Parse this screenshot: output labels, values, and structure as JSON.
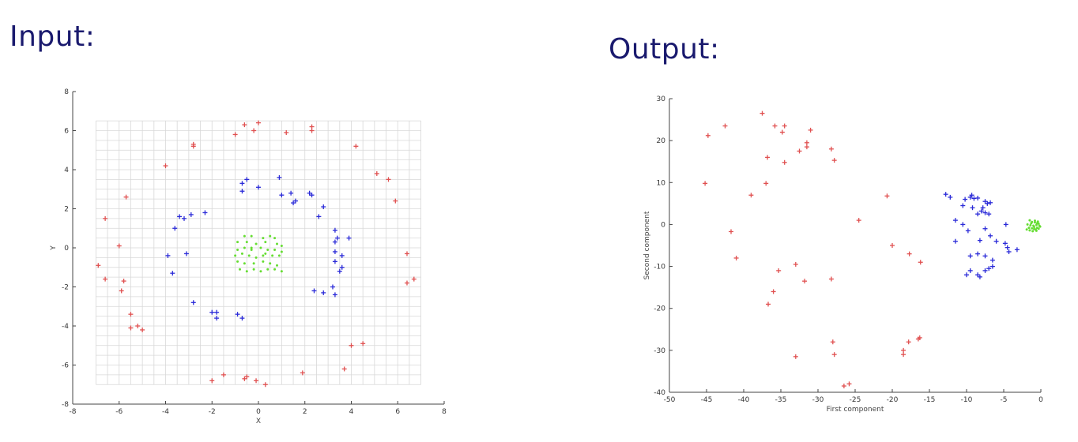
{
  "headings": {
    "input": "Input:",
    "output": "Output:"
  },
  "colors": {
    "outer": "#e05050",
    "middle": "#2a2ad8",
    "inner": "#66dd33",
    "grid": "#d8d8d8",
    "axis": "#444444",
    "heading": "#1a1a6e"
  },
  "chart_data": [
    {
      "type": "scatter",
      "title": "",
      "xlabel": "X",
      "ylabel": "Y",
      "xlim": [
        -8,
        8
      ],
      "ylim": [
        -8,
        8
      ],
      "xticks": [
        -8,
        -6,
        -4,
        -2,
        0,
        2,
        4,
        6,
        8
      ],
      "yticks": [
        -8,
        -6,
        -4,
        -2,
        0,
        2,
        4,
        6,
        8
      ],
      "grid": true,
      "grid_range": {
        "x": [
          -7,
          7
        ],
        "y": [
          -7,
          6.5
        ],
        "step": 0.5
      },
      "series": [
        {
          "marker": "plus",
          "color_key": "outer",
          "points": [
            [
              -0.6,
              6.3
            ],
            [
              0,
              6.4
            ],
            [
              -0.2,
              6.0
            ],
            [
              1.2,
              5.9
            ],
            [
              2.3,
              6.2
            ],
            [
              2.3,
              6.0
            ],
            [
              -2.8,
              5.3
            ],
            [
              -2.8,
              5.2
            ],
            [
              -4,
              4.2
            ],
            [
              4.2,
              5.2
            ],
            [
              5.1,
              3.8
            ],
            [
              5.6,
              3.5
            ],
            [
              5.9,
              2.4
            ],
            [
              -5.7,
              2.6
            ],
            [
              -6.6,
              1.5
            ],
            [
              -6.9,
              -0.9
            ],
            [
              -6.0,
              0.1
            ],
            [
              -6.6,
              -1.6
            ],
            [
              -5.8,
              -1.7
            ],
            [
              -5.9,
              -2.2
            ],
            [
              -5.5,
              -3.4
            ],
            [
              -5.5,
              -4.1
            ],
            [
              -5.2,
              -4.0
            ],
            [
              -5.0,
              -4.2
            ],
            [
              6.4,
              -0.3
            ],
            [
              6.4,
              -1.8
            ],
            [
              6.7,
              -1.6
            ],
            [
              4.5,
              -4.9
            ],
            [
              4.0,
              -5.0
            ],
            [
              3.7,
              -6.2
            ],
            [
              1.9,
              -6.4
            ],
            [
              -0.5,
              -6.6
            ],
            [
              -0.6,
              -6.7
            ],
            [
              -0.1,
              -6.8
            ],
            [
              -1.5,
              -6.5
            ],
            [
              -2.0,
              -6.8
            ],
            [
              0.3,
              -7.0
            ],
            [
              -1,
              5.8
            ]
          ]
        },
        {
          "marker": "plus",
          "color_key": "middle",
          "points": [
            [
              -0.7,
              3.3
            ],
            [
              -0.5,
              3.5
            ],
            [
              -0.7,
              2.9
            ],
            [
              0,
              3.1
            ],
            [
              0.9,
              3.6
            ],
            [
              1.0,
              2.7
            ],
            [
              1.4,
              2.8
            ],
            [
              1.6,
              2.4
            ],
            [
              1.5,
              2.3
            ],
            [
              2.2,
              2.8
            ],
            [
              2.3,
              2.7
            ],
            [
              2.8,
              2.1
            ],
            [
              2.6,
              1.6
            ],
            [
              -2.3,
              1.8
            ],
            [
              -2.9,
              1.7
            ],
            [
              -3.4,
              1.6
            ],
            [
              -3.2,
              1.5
            ],
            [
              -3.6,
              1.0
            ],
            [
              -3.9,
              -0.4
            ],
            [
              -3.1,
              -0.3
            ],
            [
              -3.7,
              -1.3
            ],
            [
              3.3,
              0.9
            ],
            [
              3.4,
              0.5
            ],
            [
              3.3,
              0.3
            ],
            [
              3.3,
              -0.2
            ],
            [
              3.6,
              -0.4
            ],
            [
              3.9,
              0.5
            ],
            [
              3.3,
              -0.7
            ],
            [
              3.6,
              -1.0
            ],
            [
              3.5,
              -1.2
            ],
            [
              3.2,
              -2.0
            ],
            [
              3.3,
              -2.4
            ],
            [
              2.8,
              -2.3
            ],
            [
              2.4,
              -2.2
            ],
            [
              -2.8,
              -2.8
            ],
            [
              -2.0,
              -3.3
            ],
            [
              -1.8,
              -3.3
            ],
            [
              -1.8,
              -3.6
            ],
            [
              -0.9,
              -3.4
            ],
            [
              -0.7,
              -3.6
            ]
          ]
        },
        {
          "marker": "dot",
          "color_key": "inner",
          "points": [
            [
              -0.6,
              0.6
            ],
            [
              -0.3,
              0.6
            ],
            [
              0.2,
              0.5
            ],
            [
              0.5,
              0.6
            ],
            [
              0.7,
              0.5
            ],
            [
              -0.9,
              0.3
            ],
            [
              -0.5,
              0.3
            ],
            [
              -0.1,
              0.2
            ],
            [
              0.3,
              0.3
            ],
            [
              0.8,
              0.2
            ],
            [
              1.0,
              0.1
            ],
            [
              -0.9,
              -0.1
            ],
            [
              -0.6,
              0
            ],
            [
              -0.3,
              -0.1
            ],
            [
              0.1,
              0.0
            ],
            [
              0.4,
              -0.1
            ],
            [
              0.7,
              -0.1
            ],
            [
              1.0,
              -0.2
            ],
            [
              -1.0,
              -0.4
            ],
            [
              -0.7,
              -0.3
            ],
            [
              -0.4,
              -0.4
            ],
            [
              -0.1,
              -0.5
            ],
            [
              0.3,
              -0.3
            ],
            [
              0.6,
              -0.4
            ],
            [
              0.9,
              -0.4
            ],
            [
              -0.9,
              -0.7
            ],
            [
              -0.6,
              -0.8
            ],
            [
              -0.2,
              -0.8
            ],
            [
              0.2,
              -0.7
            ],
            [
              0.5,
              -0.8
            ],
            [
              0.8,
              -0.9
            ],
            [
              -0.8,
              -1.1
            ],
            [
              -0.5,
              -1.2
            ],
            [
              -0.2,
              -1.1
            ],
            [
              0.1,
              -1.2
            ],
            [
              0.4,
              -1.1
            ],
            [
              0.7,
              -1.1
            ],
            [
              1.0,
              -1.2
            ],
            [
              -0.3,
              0.0
            ],
            [
              0.2,
              -0.4
            ]
          ]
        }
      ]
    },
    {
      "type": "scatter",
      "title": "",
      "xlabel": "First component",
      "ylabel": "Second component",
      "xlim": [
        -50,
        0
      ],
      "ylim": [
        -40,
        30
      ],
      "xticks": [
        -50,
        -45,
        -40,
        -35,
        -30,
        -25,
        -20,
        -15,
        -10,
        -5,
        0
      ],
      "yticks": [
        -40,
        -30,
        -20,
        -10,
        0,
        10,
        20,
        30
      ],
      "grid": false,
      "series": [
        {
          "marker": "plus",
          "color_key": "outer",
          "points": [
            [
              -37.5,
              26.5
            ],
            [
              -44.8,
              21.2
            ],
            [
              -42.5,
              23.5
            ],
            [
              -35.8,
              23.5
            ],
            [
              -34.5,
              23.5
            ],
            [
              -34.8,
              22.0
            ],
            [
              -31.0,
              22.5
            ],
            [
              -31.5,
              19.5
            ],
            [
              -31.5,
              18.5
            ],
            [
              -32.5,
              17.5
            ],
            [
              -28.2,
              18.0
            ],
            [
              -27.8,
              15.3
            ],
            [
              -36.8,
              16.0
            ],
            [
              -34.5,
              14.8
            ],
            [
              -45.2,
              9.8
            ],
            [
              -37.0,
              9.8
            ],
            [
              -39.0,
              7.0
            ],
            [
              -20.7,
              6.8
            ],
            [
              -24.5,
              1.0
            ],
            [
              -41.7,
              -1.7
            ],
            [
              -41.0,
              -8.0
            ],
            [
              -20.0,
              -5.0
            ],
            [
              -17.7,
              -7.0
            ],
            [
              -16.2,
              -9.0
            ],
            [
              -33.0,
              -9.5
            ],
            [
              -35.3,
              -11.0
            ],
            [
              -31.8,
              -13.5
            ],
            [
              -28.2,
              -13.0
            ],
            [
              -36.0,
              -16.0
            ],
            [
              -36.7,
              -19.0
            ],
            [
              -28.0,
              -28.0
            ],
            [
              -27.8,
              -31.0
            ],
            [
              -18.5,
              -30.0
            ],
            [
              -18.5,
              -31.0
            ],
            [
              -17.8,
              -28.0
            ],
            [
              -16.5,
              -27.3
            ],
            [
              -16.3,
              -27.0
            ],
            [
              -33.0,
              -31.5
            ],
            [
              -26.5,
              -38.5
            ],
            [
              -25.8,
              -38.0
            ]
          ]
        },
        {
          "marker": "plus",
          "color_key": "middle",
          "points": [
            [
              -12.8,
              7.2
            ],
            [
              -12.2,
              6.5
            ],
            [
              -10.2,
              6.0
            ],
            [
              -9.5,
              6.5
            ],
            [
              -9.3,
              7.0
            ],
            [
              -9.0,
              6.2
            ],
            [
              -8.5,
              6.3
            ],
            [
              -7.5,
              5.5
            ],
            [
              -7.2,
              5.0
            ],
            [
              -6.8,
              5.2
            ],
            [
              -10.5,
              4.5
            ],
            [
              -9.2,
              4.0
            ],
            [
              -7.8,
              4.0
            ],
            [
              -8.0,
              3.2
            ],
            [
              -7.5,
              2.8
            ],
            [
              -8.5,
              2.5
            ],
            [
              -7.0,
              2.5
            ],
            [
              -11.5,
              1.0
            ],
            [
              -10.5,
              0.0
            ],
            [
              -9.8,
              -1.5
            ],
            [
              -4.7,
              0
            ],
            [
              -7.5,
              -1.0
            ],
            [
              -6.8,
              -2.7
            ],
            [
              -8.2,
              -3.8
            ],
            [
              -6.0,
              -4.0
            ],
            [
              -11.5,
              -4.0
            ],
            [
              -4.8,
              -4.5
            ],
            [
              -4.5,
              -5.5
            ],
            [
              -4.3,
              -6.5
            ],
            [
              -3.2,
              -6.0
            ],
            [
              -8.5,
              -7.0
            ],
            [
              -9.5,
              -7.5
            ],
            [
              -7.5,
              -7.5
            ],
            [
              -6.5,
              -8.5
            ],
            [
              -7.0,
              -10.5
            ],
            [
              -7.5,
              -11.0
            ],
            [
              -6.5,
              -10.0
            ],
            [
              -8.5,
              -12.0
            ],
            [
              -9.5,
              -11.0
            ],
            [
              -10.0,
              -12.0
            ],
            [
              -8.2,
              -12.5
            ]
          ]
        },
        {
          "marker": "dot",
          "color_key": "inner",
          "points": [
            [
              -1.5,
              1.0
            ],
            [
              -1.2,
              0.6
            ],
            [
              -0.8,
              0.5
            ],
            [
              -0.5,
              0.3
            ],
            [
              -0.3,
              0.2
            ],
            [
              -1.8,
              0.0
            ],
            [
              -1.4,
              -0.2
            ],
            [
              -1.0,
              -0.3
            ],
            [
              -0.6,
              -0.1
            ],
            [
              -0.2,
              -0.3
            ],
            [
              -1.6,
              -0.8
            ],
            [
              -1.2,
              -0.9
            ],
            [
              -0.9,
              -0.6
            ],
            [
              -0.5,
              -0.8
            ],
            [
              -0.1,
              -0.5
            ],
            [
              -1.9,
              -1.2
            ],
            [
              -1.5,
              -1.4
            ],
            [
              -1.1,
              -1.6
            ],
            [
              -0.7,
              -1.2
            ],
            [
              -0.3,
              -1.0
            ],
            [
              -0.8,
              0.9
            ],
            [
              -0.4,
              0.7
            ],
            [
              -1.3,
              0.3
            ],
            [
              -0.9,
              -1.1
            ],
            [
              -0.6,
              -1.5
            ]
          ]
        }
      ]
    }
  ]
}
